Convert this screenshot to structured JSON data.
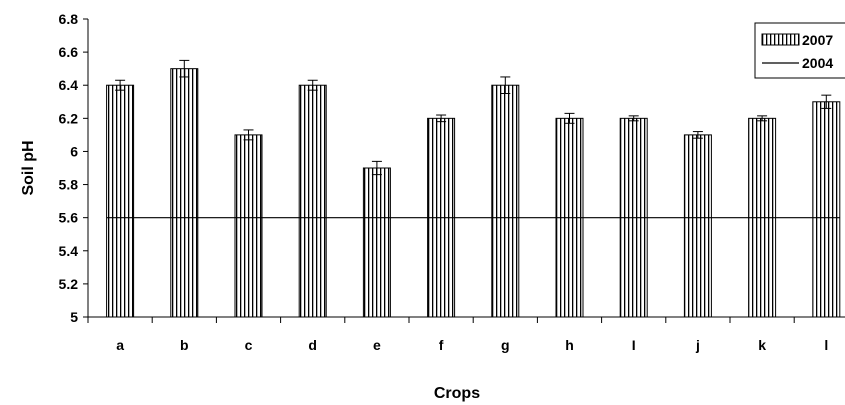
{
  "chart_data": {
    "type": "bar",
    "categories": [
      "a",
      "b",
      "c",
      "d",
      "e",
      "f",
      "g",
      "h",
      "I",
      "j",
      "k",
      "l"
    ],
    "series": [
      {
        "name": "2007",
        "type": "bar",
        "values": [
          6.4,
          6.5,
          6.1,
          6.4,
          5.9,
          6.2,
          6.4,
          6.2,
          6.2,
          6.1,
          6.2,
          6.3
        ],
        "error": [
          0.03,
          0.05,
          0.03,
          0.03,
          0.04,
          0.02,
          0.05,
          0.03,
          0.015,
          0.02,
          0.015,
          0.04
        ]
      },
      {
        "name": "2004",
        "type": "line",
        "value": 5.6
      }
    ],
    "xlabel": "Crops",
    "ylabel": "Soil pH",
    "ylim": [
      5,
      6.8
    ],
    "yticks": [
      "5",
      "5.2",
      "5.4",
      "5.6",
      "5.8",
      "6",
      "6.2",
      "6.4",
      "6.6",
      "6.8"
    ],
    "legend_position": "top-right",
    "grid": false,
    "colors": {
      "bar_fill": "#ffffff",
      "bar_stripe": "#000000",
      "line": "#000000"
    }
  }
}
